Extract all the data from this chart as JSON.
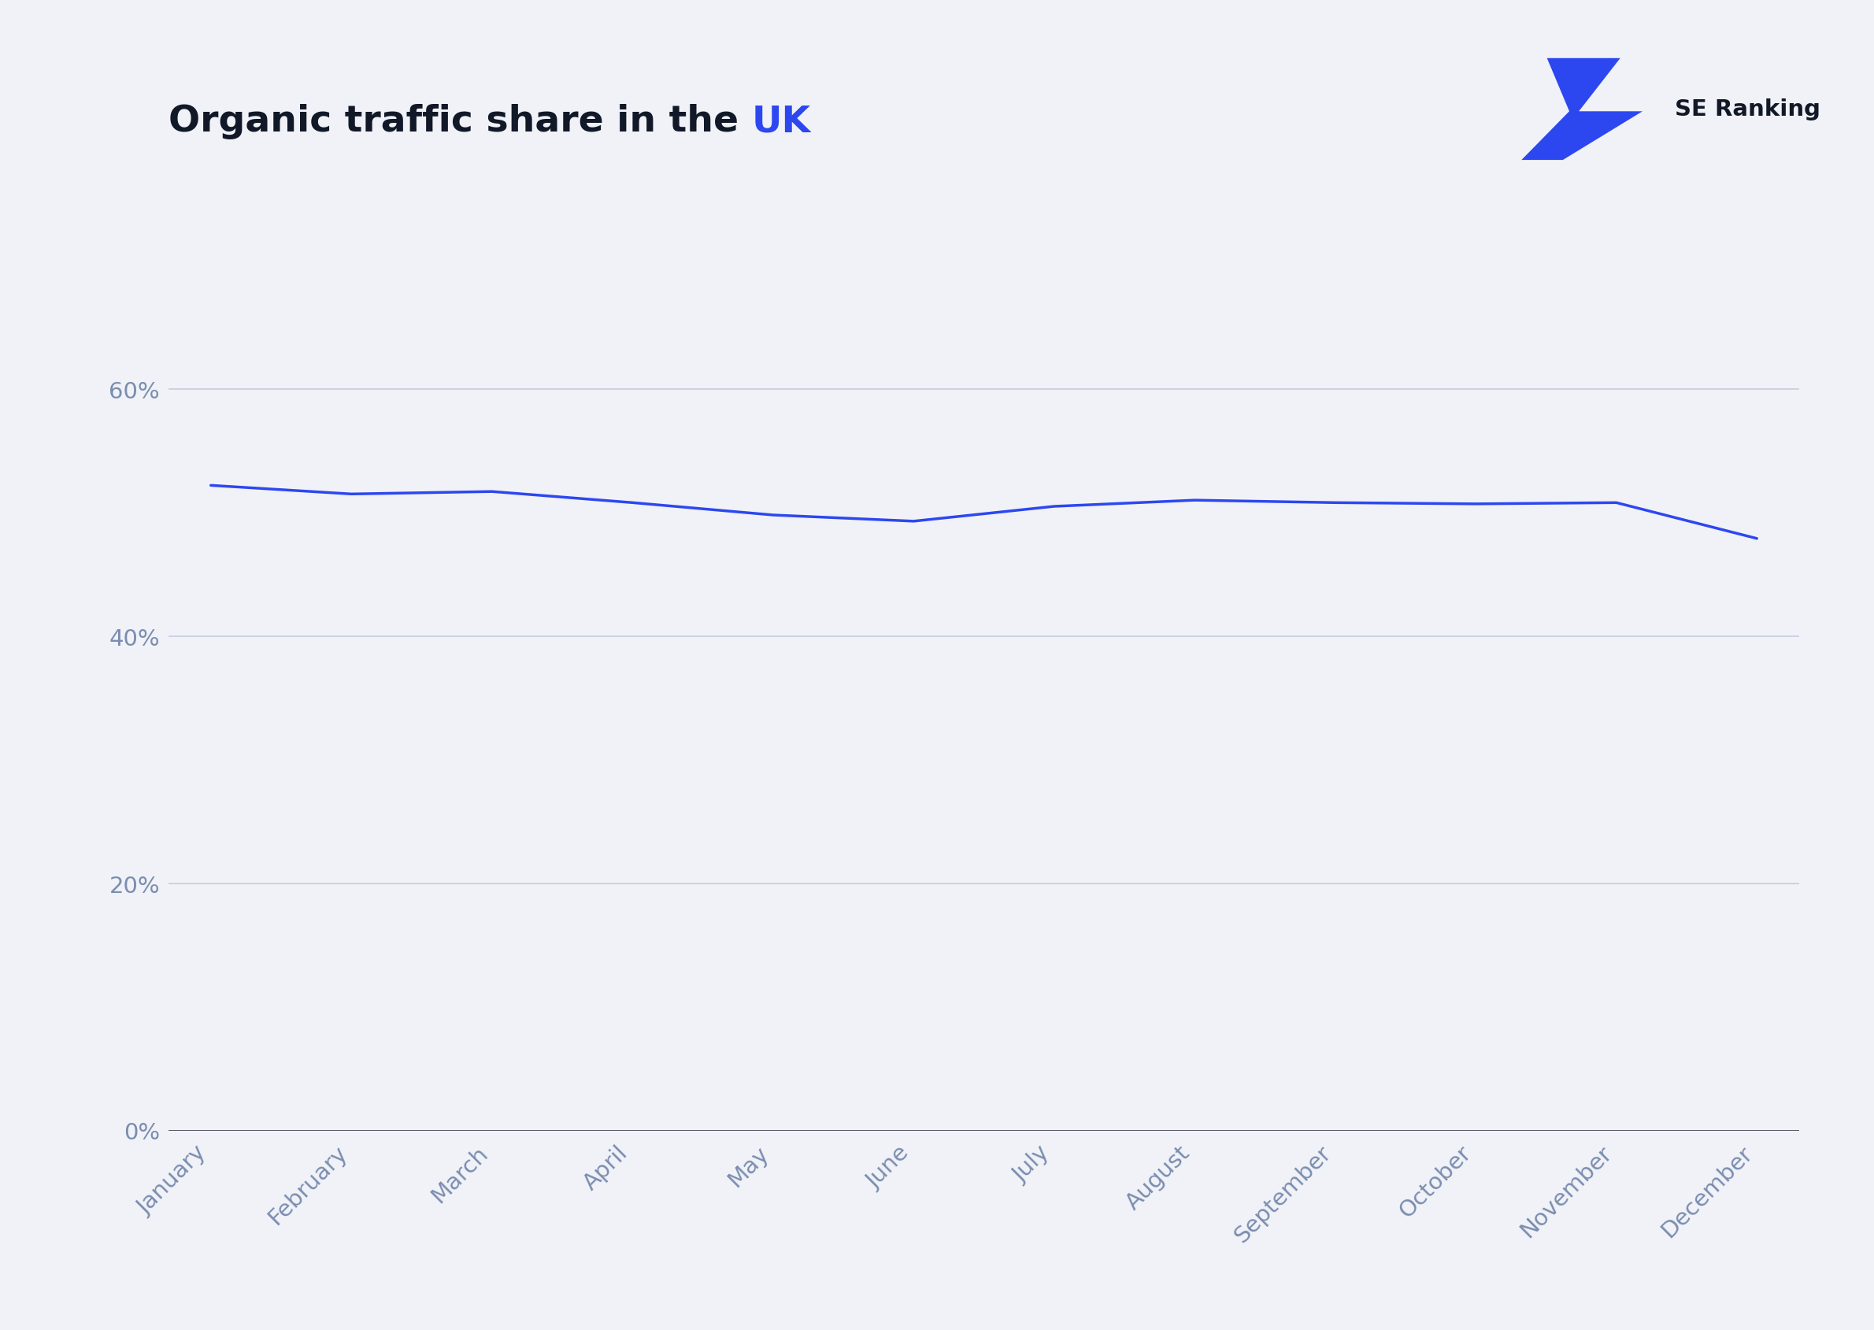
{
  "title_main": "Organic traffic share in the ",
  "title_highlight": "UK",
  "title_color_main": "#111827",
  "title_color_highlight": "#2d47f0",
  "background_color": "#f0f2f7",
  "line_color": "#2d47f0",
  "grid_color": "#c5cce0",
  "tick_color": "#7b8db0",
  "zero_line_color": "#222233",
  "months": [
    "January",
    "February",
    "March",
    "April",
    "May",
    "June",
    "July",
    "August",
    "September",
    "October",
    "November",
    "December"
  ],
  "values": [
    52.2,
    51.5,
    51.7,
    50.8,
    49.8,
    49.3,
    50.5,
    51.0,
    50.8,
    50.7,
    50.8,
    47.9
  ],
  "ylim": [
    0,
    70
  ],
  "yticks": [
    0,
    20,
    40,
    60
  ],
  "ytick_labels": [
    "0%",
    "20%",
    "40%",
    "60%"
  ],
  "line_width": 2.5,
  "title_fontsize": 34,
  "tick_fontsize": 21,
  "logo_text": "SE Ranking",
  "logo_text_color": "#111827",
  "logo_fontsize": 21
}
